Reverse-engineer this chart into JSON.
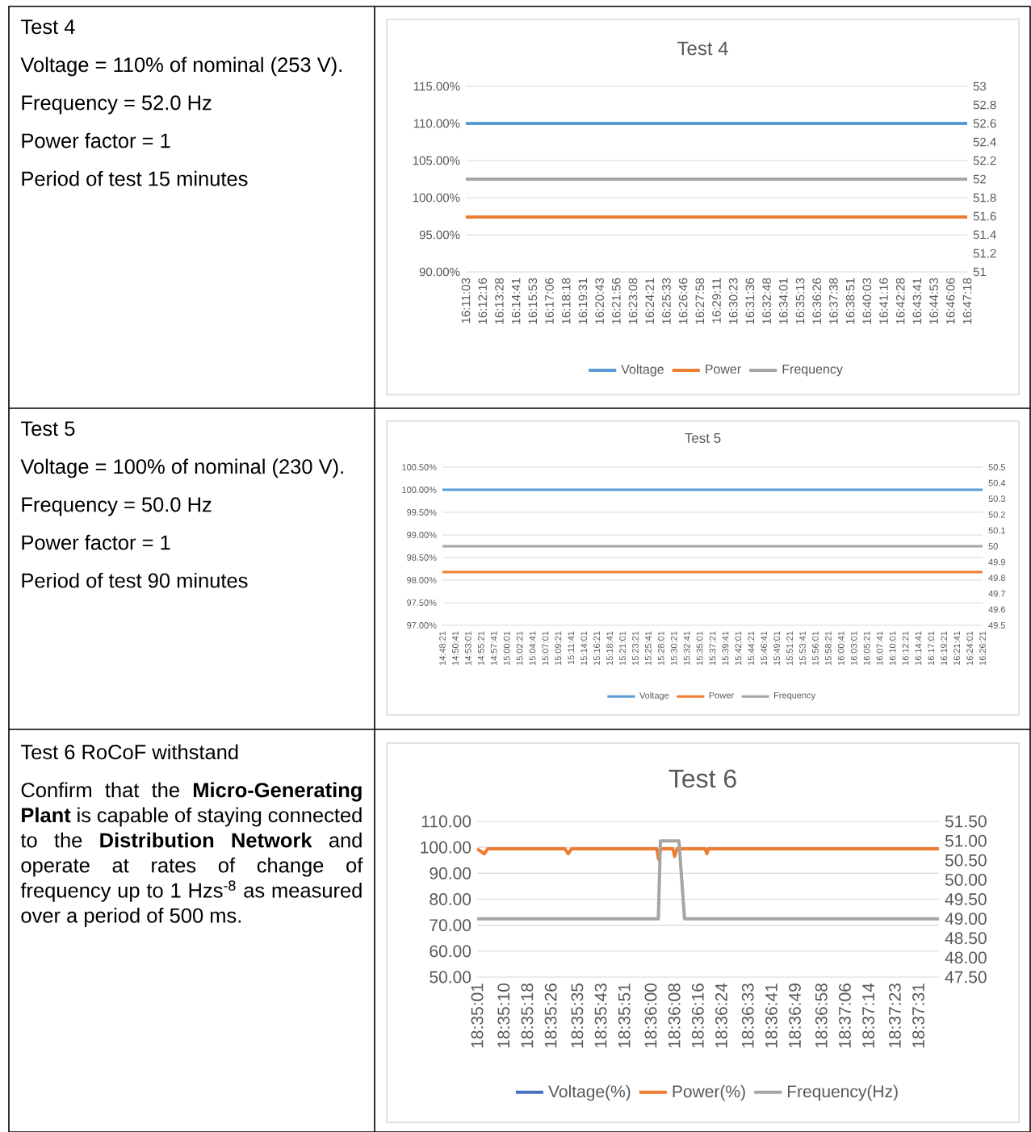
{
  "chart_data": [
    {
      "type": "other",
      "title": "Test 4",
      "annotations": [
        "Voltage = 110% of nominal (253 V).",
        "Frequency = 52.0 Hz",
        "Power factor = 1",
        "Period of test 15 minutes"
      ]
    },
    {
      "type": "line",
      "title": "Test 4",
      "legend": "bottom",
      "grid": "y",
      "categories": [
        "16:11:03",
        "16:12:16",
        "16:13:28",
        "16:14:41",
        "16:15:53",
        "16:17:06",
        "16:18:18",
        "16:19:31",
        "16:20:43",
        "16:21:56",
        "16:23:08",
        "16:24:21",
        "16:25:33",
        "16:26:46",
        "16:27:58",
        "16:29:11",
        "16:30:23",
        "16:31:36",
        "16:32:48",
        "16:34:01",
        "16:35:13",
        "16:36:26",
        "16:37:38",
        "16:38:51",
        "16:40:03",
        "16:41:16",
        "16:42:28",
        "16:43:41",
        "16:44:53",
        "16:46:06",
        "16:47:18"
      ],
      "ylim": [
        90,
        115
      ],
      "yticks": [
        {
          "value": 90,
          "label": "90.00%"
        },
        {
          "value": 95,
          "label": "95.00%"
        },
        {
          "value": 100,
          "label": "100.00%"
        },
        {
          "value": 105,
          "label": "105.00%"
        },
        {
          "value": 110,
          "label": "110.00%"
        },
        {
          "value": 115,
          "label": "115.00%"
        }
      ],
      "y2lim": [
        51,
        53
      ],
      "y2ticks": [
        51,
        51.2,
        51.4,
        51.6,
        51.8,
        52,
        52.2,
        52.4,
        52.6,
        52.8,
        53
      ],
      "series": [
        {
          "name": "Voltage",
          "color": "#5b9bd5",
          "values": [
            110,
            110,
            110,
            110,
            110,
            110,
            110,
            110,
            110,
            110,
            110,
            110,
            110,
            110,
            110,
            110,
            110,
            110,
            110,
            110,
            110,
            110,
            110,
            110,
            110,
            110,
            110,
            110,
            110,
            110,
            110
          ]
        },
        {
          "name": "Power",
          "color": "#ed7d31",
          "values": [
            97.4,
            97.4,
            97.4,
            97.4,
            97.4,
            97.4,
            97.4,
            97.4,
            97.4,
            97.4,
            97.4,
            97.4,
            97.4,
            97.4,
            97.4,
            97.4,
            97.4,
            97.4,
            97.4,
            97.4,
            97.4,
            97.4,
            97.4,
            97.4,
            97.4,
            97.4,
            97.4,
            97.4,
            97.4,
            97.4,
            97.4
          ]
        },
        {
          "name": "Frequency",
          "color": "#a5a5a5",
          "axis": "y2",
          "values": [
            52,
            52,
            52,
            52,
            52,
            52,
            52,
            52,
            52,
            52,
            52,
            52,
            52,
            52,
            52,
            52,
            52,
            52,
            52,
            52,
            52,
            52,
            52,
            52,
            52,
            52,
            52,
            52,
            52,
            52,
            52
          ]
        }
      ]
    },
    {
      "type": "other",
      "title": "Test 5",
      "annotations": [
        "Voltage = 100% of nominal (230 V).",
        "Frequency = 50.0 Hz",
        "Power factor = 1",
        "Period of test 90 minutes"
      ]
    },
    {
      "type": "line",
      "title": "Test 5",
      "legend": "bottom",
      "grid": "y",
      "categories": [
        "14:48:21",
        "14:50:41",
        "14:53:01",
        "14:55:21",
        "14:57:41",
        "15:00:01",
        "15:02:21",
        "15:04:41",
        "15:07:01",
        "15:09:21",
        "15:11:41",
        "15:14:01",
        "15:16:21",
        "15:18:41",
        "15:21:01",
        "15:23:21",
        "15:25:41",
        "15:28:01",
        "15:30:21",
        "15:32:41",
        "15:35:01",
        "15:37:21",
        "15:39:41",
        "15:42:01",
        "15:44:21",
        "15:46:41",
        "15:49:01",
        "15:51:21",
        "15:53:41",
        "15:56:01",
        "15:58:21",
        "16:00:41",
        "16:03:01",
        "16:05:21",
        "16:07:41",
        "16:10:01",
        "16:12:21",
        "16:14:41",
        "16:17:01",
        "16:19:21",
        "16:21:41",
        "16:24:01",
        "16:26:21"
      ],
      "ylim": [
        97,
        100.5
      ],
      "yticks": [
        {
          "value": 97,
          "label": "97.00%"
        },
        {
          "value": 97.5,
          "label": "97.50%"
        },
        {
          "value": 98,
          "label": "98.00%"
        },
        {
          "value": 98.5,
          "label": "98.50%"
        },
        {
          "value": 99,
          "label": "99.00%"
        },
        {
          "value": 99.5,
          "label": "99.50%"
        },
        {
          "value": 100,
          "label": "100.00%"
        },
        {
          "value": 100.5,
          "label": "100.50%"
        }
      ],
      "y2lim": [
        49.5,
        50.5
      ],
      "y2ticks": [
        49.5,
        49.6,
        49.7,
        49.8,
        49.9,
        50,
        50.1,
        50.2,
        50.3,
        50.4,
        50.5
      ],
      "series": [
        {
          "name": "Voltage",
          "color": "#5b9bd5",
          "values": [
            100,
            100,
            100,
            100,
            100,
            100,
            100,
            100,
            100,
            100,
            100,
            100,
            100,
            100,
            100,
            100,
            100,
            100,
            100,
            100,
            100,
            100,
            100,
            100,
            100,
            100,
            100,
            100,
            100,
            100,
            100,
            100,
            100,
            100,
            100,
            100,
            100,
            100,
            100,
            100,
            100,
            100,
            100
          ]
        },
        {
          "name": "Power",
          "color": "#ed7d31",
          "values": [
            98.18,
            98.18,
            98.18,
            98.18,
            98.18,
            98.18,
            98.18,
            98.18,
            98.18,
            98.18,
            98.18,
            98.18,
            98.18,
            98.18,
            98.18,
            98.18,
            98.18,
            98.18,
            98.18,
            98.18,
            98.18,
            98.18,
            98.18,
            98.18,
            98.18,
            98.18,
            98.18,
            98.18,
            98.18,
            98.18,
            98.18,
            98.18,
            98.18,
            98.18,
            98.18,
            98.18,
            98.18,
            98.18,
            98.18,
            98.18,
            98.18,
            98.18,
            98.18
          ]
        },
        {
          "name": "Frequency",
          "color": "#a5a5a5",
          "axis": "y2",
          "values": [
            50,
            50,
            50,
            50,
            50,
            50,
            50,
            50,
            50,
            50,
            50,
            50,
            50,
            50,
            50,
            50,
            50,
            50,
            50,
            50,
            50,
            50,
            50,
            50,
            50,
            50,
            50,
            50,
            50,
            50,
            50,
            50,
            50,
            50,
            50,
            50,
            50,
            50,
            50,
            50,
            50,
            50,
            50
          ]
        }
      ]
    },
    {
      "type": "other",
      "title": "Test 6 RoCoF withstand",
      "annotations": [
        "Confirm that the **Micro-Generating Plant** is capable of staying connected to the **Distribution Network** and operate at rates of change of frequency up to 1 Hzs$^{-8}$ as measured over a period of 500 ms."
      ]
    },
    {
      "type": "line",
      "title": "Test 6",
      "legend": "bottom",
      "grid": "y",
      "xlim": [
        18.583611,
        18.627222
      ],
      "xticks": [
        {
          "value": 18.583611,
          "label": "18:35:01"
        },
        {
          "value": 18.586111,
          "label": "18:35:10"
        },
        {
          "value": 18.588333,
          "label": "18:35:18"
        },
        {
          "value": 18.590556,
          "label": "18:35:26"
        },
        {
          "value": 18.593056,
          "label": "18:35:35"
        },
        {
          "value": 18.595278,
          "label": "18:35:43"
        },
        {
          "value": 18.5975,
          "label": "18:35:51"
        },
        {
          "value": 18.6,
          "label": "18:36:00"
        },
        {
          "value": 18.602222,
          "label": "18:36:08"
        },
        {
          "value": 18.604444,
          "label": "18:36:16"
        },
        {
          "value": 18.606667,
          "label": "18:36:24"
        },
        {
          "value": 18.609167,
          "label": "18:36:33"
        },
        {
          "value": 18.611389,
          "label": "18:36:41"
        },
        {
          "value": 18.613611,
          "label": "18:36:49"
        },
        {
          "value": 18.616111,
          "label": "18:36:58"
        },
        {
          "value": 18.618333,
          "label": "18:37:06"
        },
        {
          "value": 18.620556,
          "label": "18:37:14"
        },
        {
          "value": 18.623056,
          "label": "18:37:23"
        },
        {
          "value": 18.625278,
          "label": "18:37:31"
        }
      ],
      "ylim": [
        50,
        110
      ],
      "yticks": [
        {
          "value": 50,
          "label": "50.00"
        },
        {
          "value": 60,
          "label": "60.00"
        },
        {
          "value": 70,
          "label": "70.00"
        },
        {
          "value": 80,
          "label": "80.00"
        },
        {
          "value": 90,
          "label": "90.00"
        },
        {
          "value": 100,
          "label": "100.00"
        },
        {
          "value": 110,
          "label": "110.00"
        }
      ],
      "y2lim": [
        47.5,
        51.5
      ],
      "y2ticks": [
        {
          "value": 47.5,
          "label": "47.50"
        },
        {
          "value": 48,
          "label": "48.00"
        },
        {
          "value": 48.5,
          "label": "48.50"
        },
        {
          "value": 49,
          "label": "49.00"
        },
        {
          "value": 49.5,
          "label": "49.50"
        },
        {
          "value": 50,
          "label": "50.00"
        },
        {
          "value": 50.5,
          "label": "50.50"
        },
        {
          "value": 51,
          "label": "51.00"
        },
        {
          "value": 51.5,
          "label": "51.50"
        }
      ],
      "series": [
        {
          "name": "Voltage(%)",
          "color": "#4472c4"
        },
        {
          "name": "Power(%)",
          "color": "#ed7d31",
          "x": [
            18.583611,
            18.584296,
            18.5846,
            18.591906,
            18.59221,
            18.592515,
            18.600581,
            18.600734,
            18.600962,
            18.602103,
            18.602256,
            18.602484,
            18.605147,
            18.6053,
            18.605452,
            18.627222
          ],
          "values": [
            99.4,
            97.5,
            99.4,
            99.4,
            97.5,
            99.4,
            99.4,
            95.5,
            99.4,
            99.4,
            96.5,
            99.4,
            99.4,
            97.5,
            99.4,
            99.4
          ]
        },
        {
          "name": "Frequency(Hz)",
          "color": "#a5a5a5",
          "axis": "y2",
          "x": [
            18.583611,
            18.600722,
            18.600917,
            18.602667,
            18.603194,
            18.627222
          ],
          "values": [
            49,
            49,
            51,
            51,
            49,
            49
          ]
        }
      ]
    }
  ]
}
